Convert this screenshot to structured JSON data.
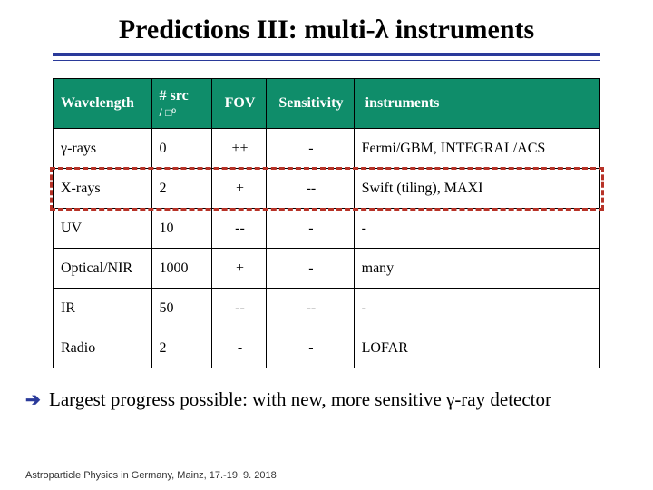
{
  "title_parts": {
    "pre": "Predictions III: multi-",
    "lambda": "λ",
    "post": " instruments"
  },
  "underline_color": "#2a3a9a",
  "table": {
    "header_bg": "#0f8d6a",
    "header_fg": "#ffffff",
    "border_color": "#000000",
    "columns": [
      {
        "label": "Wavelength",
        "align": "left",
        "sub": null
      },
      {
        "label": "# src",
        "align": "left",
        "sub": "/ □º"
      },
      {
        "label": "FOV",
        "align": "center",
        "sub": null
      },
      {
        "label": "Sensitivity",
        "align": "center",
        "sub": null
      },
      {
        "label": "instruments",
        "align": "left",
        "sub": null
      }
    ],
    "rows": [
      {
        "wavelength": "γ-rays",
        "nsrc": "0",
        "fov": "++",
        "sens": "-",
        "instr": "Fermi/GBM, INTEGRAL/ACS"
      },
      {
        "wavelength": "X-rays",
        "nsrc": "2",
        "fov": "+",
        "sens": "--",
        "instr": "Swift (tiling), MAXI"
      },
      {
        "wavelength": "UV",
        "nsrc": "10",
        "fov": "--",
        "sens": "-",
        "instr": "-"
      },
      {
        "wavelength": "Optical/NIR",
        "nsrc": "1000",
        "fov": "+",
        "sens": "-",
        "instr": "many"
      },
      {
        "wavelength": "IR",
        "nsrc": "50",
        "fov": "--",
        "sens": "--",
        "instr": "-"
      },
      {
        "wavelength": "Radio",
        "nsrc": "2",
        "fov": "-",
        "sens": "-",
        "instr": "LOFAR"
      }
    ],
    "highlight_row_index": 1,
    "highlight_color": "#b73227"
  },
  "conclusion": {
    "arrow": "➔",
    "text_pre": " Largest progress possible: with new, more sensitive ",
    "gamma": "γ",
    "text_post": "-ray detector"
  },
  "footer": "Astroparticle Physics in Germany, Mainz, 17.-19. 9. 2018"
}
